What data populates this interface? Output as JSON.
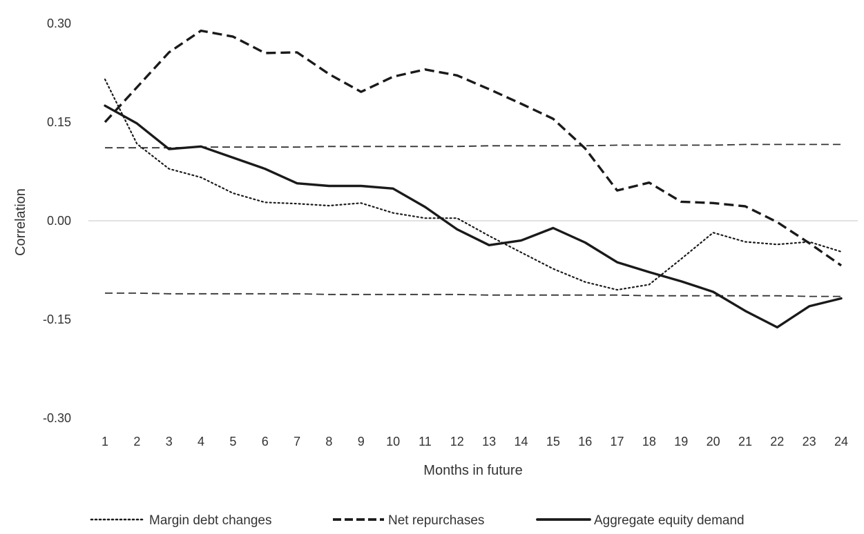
{
  "chart_data": {
    "type": "line",
    "title": "",
    "xlabel": "Months in future",
    "ylabel": "Correlation",
    "ylim": [
      -0.3,
      0.3
    ],
    "y_ticks": [
      0.3,
      0.15,
      0.0,
      -0.15,
      -0.3
    ],
    "y_tick_labels": [
      "0.30",
      "0.15",
      "0.00",
      "-0.15",
      "-0.30"
    ],
    "x": [
      1,
      2,
      3,
      4,
      5,
      6,
      7,
      8,
      9,
      10,
      11,
      12,
      13,
      14,
      15,
      16,
      17,
      18,
      19,
      20,
      21,
      22,
      23,
      24
    ],
    "x_tick_labels": [
      "1",
      "2",
      "3",
      "4",
      "5",
      "6",
      "7",
      "8",
      "9",
      "10",
      "11",
      "12",
      "13",
      "14",
      "15",
      "16",
      "17",
      "18",
      "19",
      "20",
      "21",
      "22",
      "23",
      "24"
    ],
    "zero_line": true,
    "legend_position": "bottom",
    "series": [
      {
        "name": "Margin debt changes",
        "style": "dotted",
        "values": [
          0.215,
          0.117,
          0.079,
          0.066,
          0.042,
          0.028,
          0.026,
          0.023,
          0.027,
          0.012,
          0.004,
          0.004,
          -0.023,
          -0.048,
          -0.073,
          -0.093,
          -0.105,
          -0.097,
          -0.058,
          -0.018,
          -0.032,
          -0.036,
          -0.032,
          -0.047
        ]
      },
      {
        "name": "Net repurchases",
        "style": "dashed",
        "values": [
          0.15,
          0.203,
          0.256,
          0.289,
          0.28,
          0.255,
          0.256,
          0.223,
          0.196,
          0.219,
          0.23,
          0.221,
          0.2,
          0.178,
          0.155,
          0.11,
          0.046,
          0.058,
          0.029,
          0.027,
          0.022,
          -0.002,
          -0.034,
          -0.068
        ]
      },
      {
        "name": "Aggregate equity demand",
        "style": "solid",
        "values": [
          0.175,
          0.148,
          0.109,
          0.113,
          0.096,
          0.079,
          0.057,
          0.053,
          0.053,
          0.049,
          0.021,
          -0.013,
          -0.037,
          -0.03,
          -0.011,
          -0.033,
          -0.063,
          -0.078,
          -0.092,
          -0.108,
          -0.137,
          -0.162,
          -0.13,
          -0.118
        ]
      },
      {
        "name": "Upper significance bound",
        "style": "thin-dashed",
        "show_in_legend": false,
        "values": [
          0.111,
          0.111,
          0.111,
          0.112,
          0.112,
          0.112,
          0.112,
          0.113,
          0.113,
          0.113,
          0.113,
          0.113,
          0.114,
          0.114,
          0.114,
          0.114,
          0.115,
          0.115,
          0.115,
          0.115,
          0.116,
          0.116,
          0.116,
          0.116
        ]
      },
      {
        "name": "Lower significance bound",
        "style": "thin-dashed",
        "show_in_legend": false,
        "values": [
          -0.11,
          -0.11,
          -0.111,
          -0.111,
          -0.111,
          -0.111,
          -0.111,
          -0.112,
          -0.112,
          -0.112,
          -0.112,
          -0.112,
          -0.113,
          -0.113,
          -0.113,
          -0.113,
          -0.113,
          -0.114,
          -0.114,
          -0.114,
          -0.114,
          -0.114,
          -0.115,
          -0.115
        ]
      }
    ],
    "colors": {
      "line": "#1a1a1a",
      "bound": "#333333",
      "zero": "#d9d9d9",
      "text": "#333333"
    }
  }
}
